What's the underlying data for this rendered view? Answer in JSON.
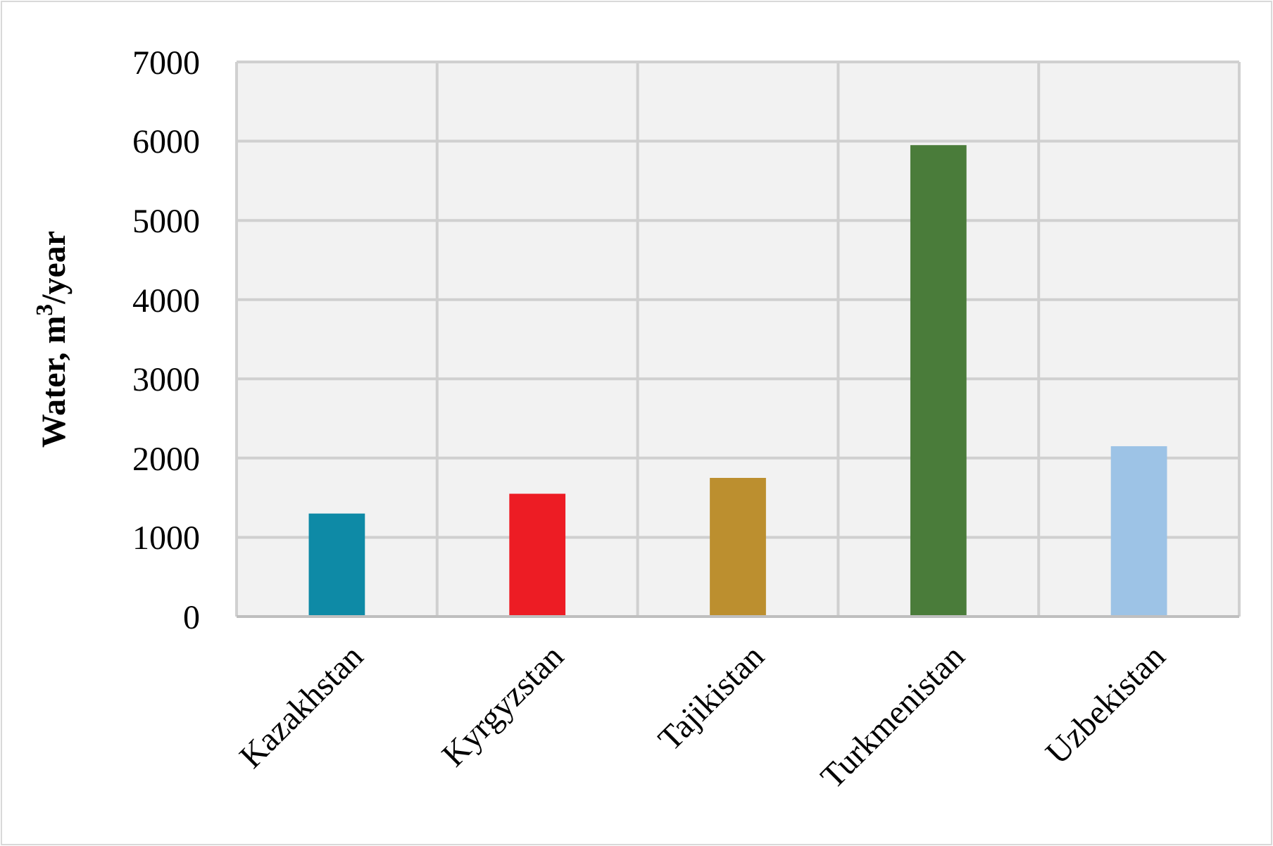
{
  "chart_data": {
    "type": "bar",
    "ylabel": "Water, m$^{3}$/year",
    "categories": [
      "Kazakhstan",
      "Kyrgyzstan",
      "Tajikistan",
      "Turkmenistan",
      "Uzbekistan"
    ],
    "values": [
      1300,
      1550,
      1750,
      5950,
      2150
    ],
    "colors": [
      "#0e8aa6",
      "#ed1c24",
      "#bc8f2f",
      "#4a7c3a",
      "#9dc3e6"
    ],
    "ylim": [
      0,
      7000
    ],
    "yticks": [
      0,
      1000,
      2000,
      3000,
      4000,
      5000,
      6000,
      7000
    ],
    "grid": true
  }
}
